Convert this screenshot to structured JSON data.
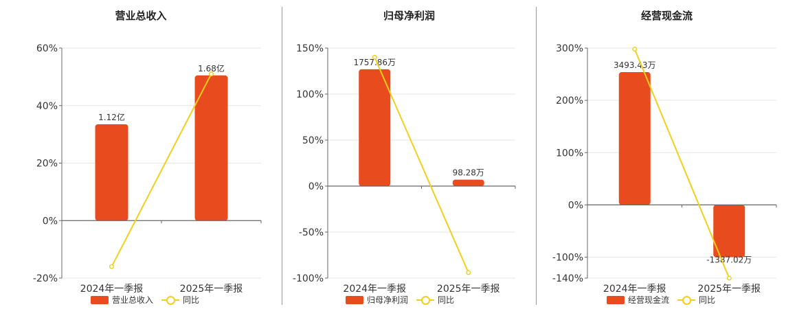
{
  "colors": {
    "bar": "#E84C1E",
    "line": "#F2CF1B",
    "axis": "#666666",
    "grid": "#E6E6E6"
  },
  "legend": {
    "bar_icon": "bar-swatch",
    "line_icon": "line-circle-marker",
    "line_label": "同比"
  },
  "chart_data": [
    {
      "type": "bar",
      "title": "营业总收入",
      "categories": [
        "2024年一季报",
        "2025年一季报"
      ],
      "y_ticks": [
        "60%",
        "40%",
        "20%",
        "0%",
        "-20%"
      ],
      "ylim": [
        -20,
        60
      ],
      "series": [
        {
          "name": "营业总收入",
          "type": "bar",
          "values": [
            33.5,
            50.5
          ],
          "labels": [
            "1.12亿",
            "1.68亿"
          ]
        },
        {
          "name": "同比",
          "type": "line",
          "values": [
            -16,
            51
          ]
        }
      ]
    },
    {
      "type": "bar",
      "title": "归母净利润",
      "categories": [
        "2024年一季报",
        "2025年一季报"
      ],
      "y_ticks": [
        "150%",
        "100%",
        "50%",
        "0%",
        "-50%",
        "-100%"
      ],
      "ylim": [
        -100,
        150
      ],
      "series": [
        {
          "name": "归母净利润",
          "type": "bar",
          "values": [
            127,
            7
          ],
          "labels": [
            "1757.86万",
            "98.28万"
          ]
        },
        {
          "name": "同比",
          "type": "line",
          "values": [
            140,
            -94
          ]
        }
      ]
    },
    {
      "type": "bar",
      "title": "经营现金流",
      "categories": [
        "2024年一季报",
        "2025年一季报"
      ],
      "y_ticks": [
        "300%",
        "200%",
        "100%",
        "0%",
        "-100%",
        "-140%"
      ],
      "ylim": [
        -140,
        300
      ],
      "series": [
        {
          "name": "经营现金流",
          "type": "bar",
          "values": [
            254,
            -100
          ],
          "labels": [
            "3493.43万",
            "-1387.02万"
          ]
        },
        {
          "name": "同比",
          "type": "line",
          "values": [
            298,
            -140
          ]
        }
      ]
    }
  ]
}
